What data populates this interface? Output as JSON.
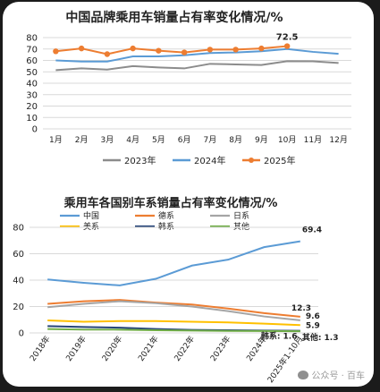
{
  "colors": {
    "grey": "#8c8c8c",
    "blue": "#5b9bd5",
    "orange": "#ed7d31",
    "yellow": "#ffc000",
    "dark": "#264478",
    "green": "#70ad47"
  },
  "footer": {
    "text": "公众号 · 百车"
  },
  "chart_data": [
    {
      "type": "line",
      "title": "中国品牌乘用车销量占有率变化情况/%",
      "categories": [
        "1月",
        "2月",
        "3月",
        "4月",
        "5月",
        "6月",
        "7月",
        "8月",
        "9月",
        "10月",
        "11月",
        "12月"
      ],
      "ylim": [
        0,
        80
      ],
      "yticks": [
        0,
        10,
        20,
        30,
        40,
        50,
        60,
        70,
        80
      ],
      "grid": true,
      "legend_position": "bottom",
      "series": [
        {
          "name": "2023年",
          "color": "#8c8c8c",
          "marker": false,
          "values": [
            51.5,
            53,
            52,
            55,
            53.8,
            53,
            57,
            56.5,
            56,
            59.3,
            59.2,
            57.7
          ]
        },
        {
          "name": "2024年",
          "color": "#5b9bd5",
          "marker": false,
          "values": [
            60,
            59,
            59,
            63.5,
            63.5,
            64.5,
            66.5,
            67,
            68,
            70,
            67.5,
            65.8
          ]
        },
        {
          "name": "2025年",
          "color": "#ed7d31",
          "marker": true,
          "values": [
            68,
            70.5,
            65.5,
            70.5,
            68.5,
            67,
            69.5,
            69.5,
            70.5,
            72.5,
            null,
            null
          ]
        }
      ],
      "annotations": [
        {
          "text": "72.5",
          "x": "10月",
          "y": 72.5
        }
      ]
    },
    {
      "type": "line",
      "title": "乘用车各国别车系销量占有率变化情况/%",
      "categories": [
        "2018年",
        "2019年",
        "2020年",
        "2021年",
        "2022年",
        "2023年",
        "2024年",
        "2025年1-10月"
      ],
      "ylim": [
        0,
        80
      ],
      "yticks": [
        0,
        20,
        40,
        60,
        80
      ],
      "grid": true,
      "legend_position": "top",
      "series": [
        {
          "name": "中国",
          "color": "#5b9bd5",
          "values": [
            40.5,
            38,
            36,
            41,
            51,
            55.5,
            65,
            69.4
          ]
        },
        {
          "name": "德系",
          "color": "#ed7d31",
          "values": [
            22,
            24,
            25,
            23,
            21.5,
            18.5,
            15,
            12.3
          ]
        },
        {
          "name": "日系",
          "color": "#a5a5a5",
          "values": [
            19.5,
            22,
            24,
            22.5,
            20,
            16.5,
            12.5,
            9.6
          ]
        },
        {
          "name": "美系",
          "color": "#ffc000",
          "values": [
            9.5,
            8.5,
            9,
            9,
            8.5,
            8,
            7,
            5.9
          ]
        },
        {
          "name": "韩系",
          "color": "#264478",
          "values": [
            5.2,
            4.5,
            4,
            3,
            2.3,
            2,
            1.8,
            1.6
          ]
        },
        {
          "name": "其他",
          "color": "#70ad47",
          "values": [
            3,
            2.5,
            2.5,
            2,
            1.8,
            1.5,
            1.4,
            1.3
          ]
        }
      ],
      "end_labels": [
        {
          "series": "中国",
          "text": "69.4"
        },
        {
          "series": "德系",
          "text": "12.3"
        },
        {
          "series": "日系",
          "text": "9.6"
        },
        {
          "series": "美系",
          "text": "5.9"
        },
        {
          "series": "韩系",
          "text": "韩系: 1.6"
        },
        {
          "series": "其他",
          "text": "其他: 1.3"
        }
      ]
    }
  ]
}
